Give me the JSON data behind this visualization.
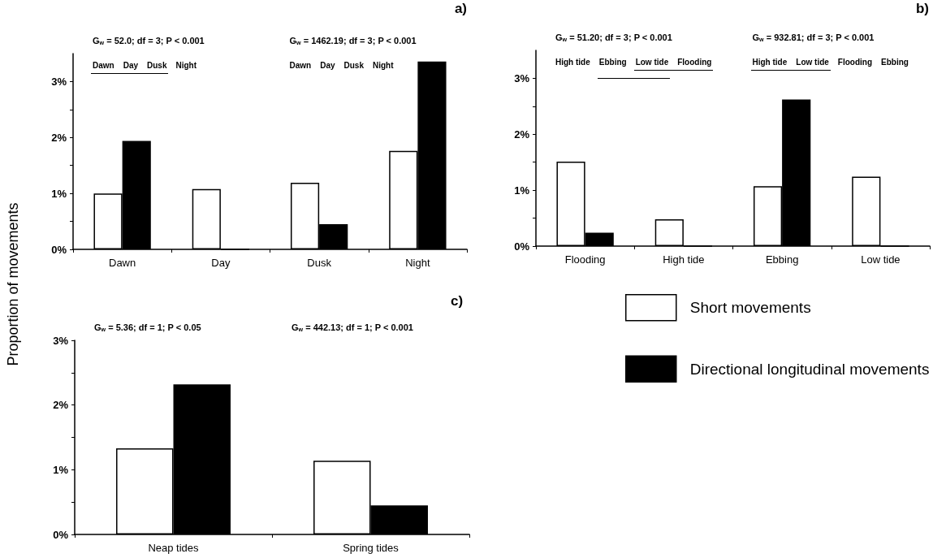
{
  "chart_data": [
    {
      "type": "bar",
      "title": "a)",
      "categories": [
        "Dawn",
        "Day",
        "Dusk",
        "Night"
      ],
      "series": [
        {
          "color": "#ffffff",
          "values": [
            1.0,
            1.08,
            1.19,
            1.76
          ]
        },
        {
          "color": "#000000",
          "values": [
            1.94,
            0,
            0.45,
            3.36
          ]
        }
      ],
      "ylim": [
        0,
        3.5
      ],
      "yticks": [
        {
          "value": 0,
          "label": "0%"
        },
        {
          "value": 0.5,
          "label": null
        },
        {
          "value": 1,
          "label": "1%"
        },
        {
          "value": 1.5,
          "label": null
        },
        {
          "value": 2,
          "label": "2%"
        },
        {
          "value": 2.5,
          "label": null
        },
        {
          "value": 3,
          "label": "3%"
        }
      ],
      "annotations": [
        "G$_{w}$ = 52.0; df = 3; P < 0.001",
        "Dawn",
        "Day",
        "Dusk",
        "Night",
        "G$_{w}$ = 1462.19; df = 3; P < 0.001",
        "Dawn",
        "Day",
        "Dusk",
        "Night"
      ],
      "grid": false,
      "legend": false
    },
    {
      "type": "bar",
      "title": "b)",
      "categories": [
        "Flooding",
        "High tide",
        "Ebbing",
        "Low tide"
      ],
      "series": [
        {
          "color": "#ffffff",
          "values": [
            1.51,
            0.48,
            1.07,
            1.24
          ]
        },
        {
          "color": "#000000",
          "values": [
            0.24,
            0,
            2.62,
            0
          ]
        }
      ],
      "ylim": [
        0,
        3.5
      ],
      "yticks": [
        {
          "value": 0,
          "label": "0%"
        },
        {
          "value": 0.5,
          "label": null
        },
        {
          "value": 1,
          "label": "1%"
        },
        {
          "value": 1.5,
          "label": null
        },
        {
          "value": 2,
          "label": "2%"
        },
        {
          "value": 2.5,
          "label": null
        },
        {
          "value": 3,
          "label": "3%"
        }
      ],
      "annotations": [
        "G$_{w}$ = 51.20; df = 3; P < 0.001",
        "High tide",
        "Ebbing",
        "Low tide",
        "Flooding",
        "G$_{w}$ = 932.81; df = 3; P < 0.001",
        "High tide",
        "Low tide",
        "Flooding",
        "Ebbing"
      ],
      "grid": false,
      "legend": false
    },
    {
      "type": "bar",
      "title": "c)",
      "ylabel": "Proportion of movements",
      "categories": [
        "Neap tides",
        "Spring tides"
      ],
      "series": [
        {
          "name": "Short movements",
          "color": "#ffffff",
          "values": [
            1.33,
            1.14
          ]
        },
        {
          "name": "Directional longitudinal movements",
          "color": "#000000",
          "values": [
            2.32,
            0.45
          ]
        }
      ],
      "ylim": [
        0,
        3
      ],
      "yticks": [
        {
          "value": 0,
          "label": "0%"
        },
        {
          "value": 0.5,
          "label": null
        },
        {
          "value": 1,
          "label": "1%"
        },
        {
          "value": 1.5,
          "label": null
        },
        {
          "value": 2,
          "label": "2%"
        },
        {
          "value": 2.5,
          "label": null
        },
        {
          "value": 3,
          "label": "3%"
        }
      ],
      "annotations": [
        "G$_{w}$ = 5.36; df = 1; P < 0.05",
        "G$_{w}$ = 442.13; df = 1; P < 0.001"
      ],
      "grid": false,
      "legend": "right"
    }
  ]
}
